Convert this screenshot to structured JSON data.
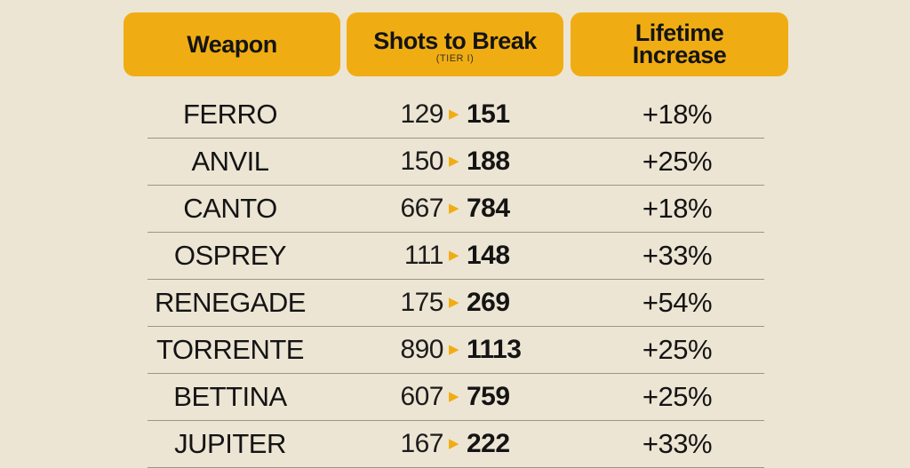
{
  "headers": {
    "weapon": "Weapon",
    "shots": "Shots to Break",
    "shots_sub": "(TIER I)",
    "lifetime_line1": "Lifetime",
    "lifetime_line2": "Increase"
  },
  "colors": {
    "background": "#ede5d4",
    "accent": "#f0ad13"
  },
  "arrow_icon": "triangle-right-icon",
  "rows": [
    {
      "weapon": "FERRO",
      "before": "129",
      "after": "151",
      "increase": "+18%"
    },
    {
      "weapon": "ANVIL",
      "before": "150",
      "after": "188",
      "increase": "+25%"
    },
    {
      "weapon": "CANTO",
      "before": "667",
      "after": "784",
      "increase": "+18%"
    },
    {
      "weapon": "OSPREY",
      "before": "111",
      "after": "148",
      "increase": "+33%"
    },
    {
      "weapon": "RENEGADE",
      "before": "175",
      "after": "269",
      "increase": "+54%"
    },
    {
      "weapon": "TORRENTE",
      "before": "890",
      "after": "1113",
      "increase": "+25%"
    },
    {
      "weapon": "BETTINA",
      "before": "607",
      "after": "759",
      "increase": "+25%"
    },
    {
      "weapon": "JUPITER",
      "before": "167",
      "after": "222",
      "increase": "+33%"
    }
  ]
}
